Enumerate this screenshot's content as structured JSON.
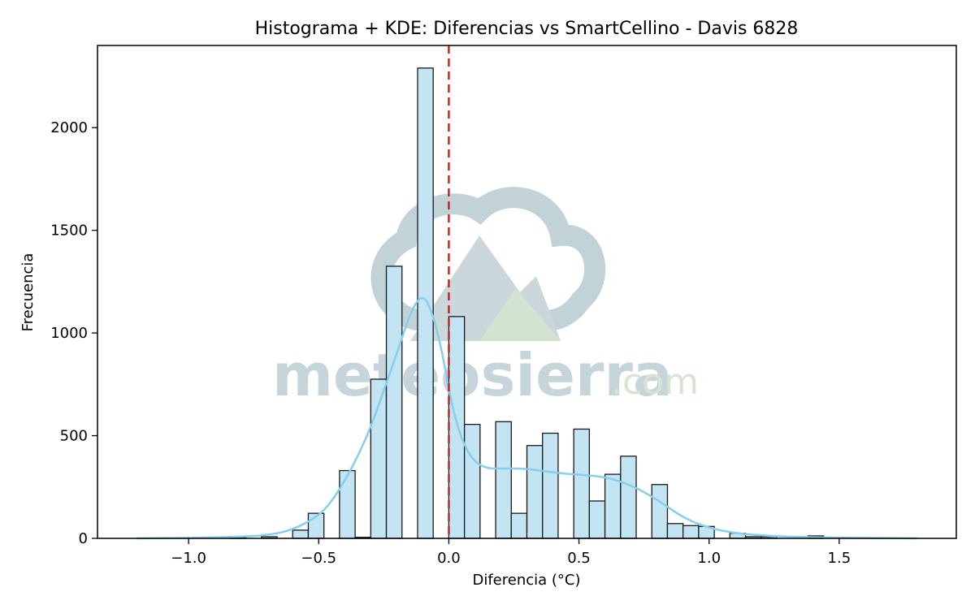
{
  "chart_data": {
    "type": "bar",
    "title": "Histograma + KDE: Diferencias vs SmartCellino - Davis 6828",
    "xlabel": "Diferencia (°C)",
    "ylabel": "Frecuencia",
    "xlim": [
      -1.35,
      1.95
    ],
    "ylim": [
      0,
      2400
    ],
    "xticks": [
      -1.0,
      -0.5,
      0.0,
      0.5,
      1.0,
      1.5
    ],
    "xtick_labels": [
      "−1.0",
      "−0.5",
      "0.0",
      "0.5",
      "1.0",
      "1.5"
    ],
    "yticks": [
      0,
      500,
      1000,
      1500,
      2000
    ],
    "ytick_labels": [
      "0",
      "500",
      "1000",
      "1500",
      "2000"
    ],
    "grid": false,
    "bins": [
      {
        "x0": -0.84,
        "x1": -0.78,
        "count": 5
      },
      {
        "x0": -0.72,
        "x1": -0.66,
        "count": 8
      },
      {
        "x0": -0.6,
        "x1": -0.54,
        "count": 40
      },
      {
        "x0": -0.54,
        "x1": -0.48,
        "count": 122
      },
      {
        "x0": -0.42,
        "x1": -0.36,
        "count": 330
      },
      {
        "x0": -0.36,
        "x1": -0.3,
        "count": 5
      },
      {
        "x0": -0.3,
        "x1": -0.24,
        "count": 775
      },
      {
        "x0": -0.24,
        "x1": -0.18,
        "count": 1325
      },
      {
        "x0": -0.12,
        "x1": -0.06,
        "count": 2290
      },
      {
        "x0": 0.0,
        "x1": 0.06,
        "count": 1080
      },
      {
        "x0": 0.06,
        "x1": 0.12,
        "count": 555
      },
      {
        "x0": 0.18,
        "x1": 0.24,
        "count": 568
      },
      {
        "x0": 0.24,
        "x1": 0.3,
        "count": 122
      },
      {
        "x0": 0.3,
        "x1": 0.36,
        "count": 452
      },
      {
        "x0": 0.36,
        "x1": 0.42,
        "count": 512
      },
      {
        "x0": 0.48,
        "x1": 0.54,
        "count": 532
      },
      {
        "x0": 0.54,
        "x1": 0.6,
        "count": 182
      },
      {
        "x0": 0.6,
        "x1": 0.66,
        "count": 312
      },
      {
        "x0": 0.66,
        "x1": 0.72,
        "count": 400
      },
      {
        "x0": 0.78,
        "x1": 0.84,
        "count": 262
      },
      {
        "x0": 0.84,
        "x1": 0.9,
        "count": 72
      },
      {
        "x0": 0.9,
        "x1": 0.96,
        "count": 62
      },
      {
        "x0": 0.96,
        "x1": 1.02,
        "count": 58
      },
      {
        "x0": 1.08,
        "x1": 1.14,
        "count": 25
      },
      {
        "x0": 1.14,
        "x1": 1.2,
        "count": 8
      },
      {
        "x0": 1.2,
        "x1": 1.26,
        "count": 8
      },
      {
        "x0": 1.38,
        "x1": 1.44,
        "count": 12
      }
    ],
    "kde": {
      "x": [
        -1.2,
        -1.0,
        -0.8,
        -0.7,
        -0.6,
        -0.5,
        -0.45,
        -0.4,
        -0.35,
        -0.3,
        -0.25,
        -0.2,
        -0.15,
        -0.12,
        -0.1,
        -0.08,
        -0.05,
        -0.02,
        0.0,
        0.03,
        0.06,
        0.1,
        0.15,
        0.2,
        0.3,
        0.4,
        0.5,
        0.6,
        0.7,
        0.8,
        0.9,
        1.0,
        1.1,
        1.2,
        1.3,
        1.5,
        1.8
      ],
      "y": [
        0,
        2,
        8,
        15,
        40,
        110,
        180,
        280,
        400,
        540,
        720,
        900,
        1090,
        1160,
        1175,
        1150,
        1040,
        870,
        720,
        560,
        450,
        370,
        340,
        340,
        340,
        320,
        310,
        300,
        260,
        190,
        100,
        50,
        25,
        15,
        8,
        3,
        0
      ]
    },
    "reference_line": {
      "x": 0.0,
      "color": "#e31a1c",
      "style": "dashed"
    },
    "colors": {
      "bar_fill": "#c3e4f3",
      "bar_edge": "#1a1a1a",
      "kde_line": "#87ceeb"
    }
  },
  "watermark": {
    "text_main": "meteosierra",
    "text_suffix": ".com"
  }
}
